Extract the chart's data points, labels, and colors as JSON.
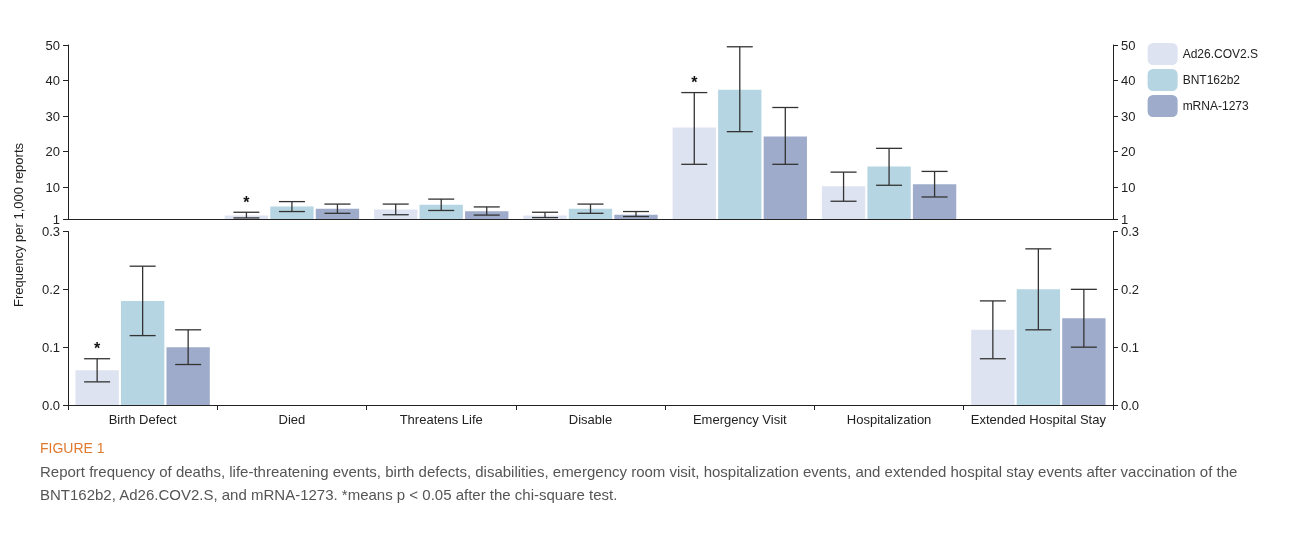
{
  "chart_data": [
    {
      "type": "bar",
      "ylabel": "Frequency per 1,000 reports",
      "categories": [
        null,
        null,
        null,
        null,
        null,
        null,
        null
      ],
      "series": [
        {
          "name": "Ad26.COV2.S",
          "color": "#dde3f1",
          "values": [
            null,
            2.0,
            3.7,
            2.0,
            26.8,
            10.2,
            null
          ],
          "errors": [
            null,
            [
              1.3,
              2.9
            ],
            [
              2.2,
              5.2
            ],
            [
              1.4,
              2.9
            ],
            [
              16.4,
              36.6
            ],
            [
              6.0,
              14.2
            ],
            null
          ],
          "value_labels": [
            null,
            "*",
            null,
            null,
            "*",
            null,
            null
          ]
        },
        {
          "name": "BNT162b2",
          "color": "#b5d5e2",
          "values": [
            null,
            4.5,
            5.0,
            3.9,
            37.4,
            15.8,
            null
          ],
          "errors": [
            null,
            [
              3.1,
              5.9
            ],
            [
              3.4,
              6.6
            ],
            [
              2.6,
              5.2
            ],
            [
              25.6,
              49.5
            ],
            [
              10.5,
              20.9
            ],
            null
          ]
        },
        {
          "name": "mRNA-1273",
          "color": "#9eabca",
          "values": [
            null,
            3.9,
            3.2,
            2.2,
            24.2,
            10.8,
            null
          ],
          "errors": [
            null,
            [
              2.6,
              5.2
            ],
            [
              2.1,
              4.4
            ],
            [
              1.7,
              3.1
            ],
            [
              16.4,
              32.4
            ],
            [
              7.2,
              14.4
            ],
            null
          ]
        }
      ],
      "ylim": [
        1,
        50
      ],
      "yticks": [
        1,
        10,
        20,
        30,
        40,
        50
      ],
      "y2lim": [
        1,
        50
      ],
      "y2ticks": [
        1,
        10,
        20,
        30,
        40,
        50
      ],
      "tick_labels": "y",
      "grid": false,
      "legend": "top right"
    },
    {
      "type": "bar",
      "categories": [
        "Birth Defect",
        "Died",
        "Threatens Life",
        "Disable",
        "Emergency Visit",
        "Hospitalization",
        "Extended Hospital Stay"
      ],
      "series": [
        {
          "color": "#dde3f1",
          "values": [
            0.06,
            null,
            null,
            null,
            null,
            null,
            0.13
          ],
          "errors": [
            [
              0.04,
              0.08
            ],
            null,
            null,
            null,
            null,
            null,
            [
              0.08,
              0.18
            ]
          ],
          "value_labels": [
            "*",
            null,
            null,
            null,
            null,
            null,
            null
          ]
        },
        {
          "color": "#b5d5e2",
          "values": [
            0.18,
            null,
            null,
            null,
            null,
            null,
            0.2
          ],
          "errors": [
            [
              0.12,
              0.24
            ],
            null,
            null,
            null,
            null,
            null,
            [
              0.13,
              0.27
            ]
          ]
        },
        {
          "color": "#9eabca",
          "values": [
            0.1,
            null,
            null,
            null,
            null,
            null,
            0.15
          ],
          "errors": [
            [
              0.07,
              0.13
            ],
            null,
            null,
            null,
            null,
            null,
            [
              0.1,
              0.2
            ]
          ]
        }
      ],
      "ylim": [
        0,
        0.3
      ],
      "yticks": [
        {
          "value": 0,
          "label": "0.0"
        },
        0.1,
        0.2,
        0.3
      ],
      "y2lim": [
        0,
        0.3
      ],
      "y2ticks": [
        {
          "value": 0,
          "label": "0.0"
        },
        0.1,
        0.2,
        0.3
      ],
      "grid": false,
      "annotations": [
        "FIGURE 1",
        "Report frequency of deaths, life-threatening events, birth defects, disabilities, emergency room visit, hospitalization events, and extended hospital stay events after vaccination of the BNT162b2, Ad26.COV2.S, and mRNA-1273. *means p < 0.05 after the chi-square test."
      ]
    }
  ]
}
